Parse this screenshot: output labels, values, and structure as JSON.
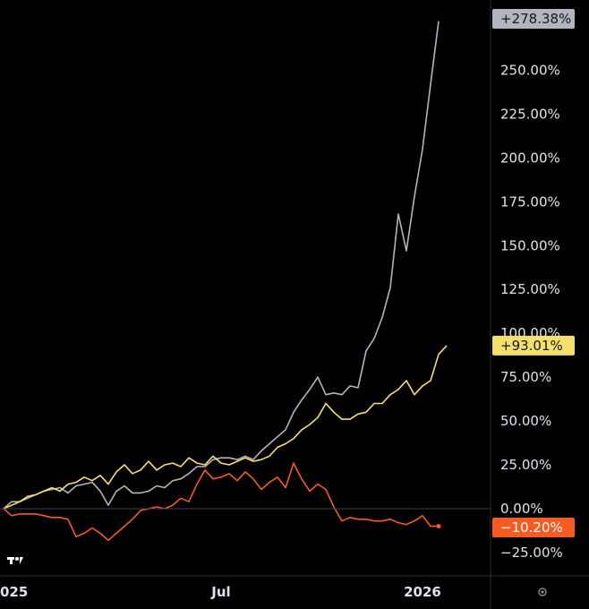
{
  "chart_data": {
    "type": "line",
    "y_unit": "%",
    "ylim": [
      -33,
      283
    ],
    "yticks": [
      "250.00%",
      "225.00%",
      "200.00%",
      "175.00%",
      "150.00%",
      "125.00%",
      "100.00%",
      "75.00%",
      "50.00%",
      "25.00%",
      "0.00%",
      "-25.00%"
    ],
    "ytick_values": [
      250,
      225,
      200,
      175,
      150,
      125,
      100,
      75,
      50,
      25,
      0,
      -25
    ],
    "xlim": [
      0,
      56
    ],
    "xticks": [
      {
        "label": "025",
        "x": 1
      },
      {
        "label": "Jul",
        "x": 27
      },
      {
        "label": "2026",
        "x": 52
      }
    ],
    "grid": false,
    "legend": "none",
    "zero_line": true,
    "series": [
      {
        "color": "#b2b5be",
        "last_value_label": "+278.38%",
        "values": [
          0,
          4,
          4,
          6,
          8,
          10,
          11,
          12,
          9,
          13,
          14,
          15,
          10,
          2,
          10,
          13,
          9,
          9,
          10,
          13,
          12,
          16,
          17,
          20,
          24,
          24,
          28,
          29,
          29,
          28,
          30,
          28,
          33,
          37,
          41,
          45,
          55,
          62,
          68,
          75,
          65,
          66,
          65,
          70,
          69,
          90,
          97,
          109,
          126,
          168,
          147,
          178,
          205,
          242,
          278
        ]
      },
      {
        "color": "#f5e06d",
        "last_value_label": "+93.01%",
        "values": [
          0,
          2,
          4,
          7,
          8,
          10,
          12,
          10,
          14,
          15,
          18,
          16,
          19,
          14,
          21,
          25,
          20,
          22,
          27,
          22,
          25,
          26,
          24,
          29,
          26,
          25,
          30,
          26,
          25,
          27,
          29,
          27,
          28,
          30,
          35,
          37,
          40,
          45,
          48,
          52,
          60,
          55,
          51,
          51,
          54,
          55,
          60,
          60,
          65,
          68,
          73,
          65,
          70,
          73,
          88,
          93
        ]
      },
      {
        "color": "#f45c24",
        "last_value_label": "-10.20%",
        "values": [
          0,
          -4,
          -3,
          -3,
          -3,
          -4,
          -5,
          -5,
          -6,
          -16,
          -14,
          -11,
          -14,
          -18,
          -14,
          -10,
          -6,
          -1,
          0,
          1,
          0,
          2,
          6,
          4,
          14,
          22,
          17,
          18,
          20,
          16,
          21,
          17,
          11,
          15,
          18,
          12,
          26,
          17,
          10,
          14,
          11,
          1,
          -7,
          -5,
          -6,
          -6,
          -7,
          -7,
          -6,
          -8,
          -9,
          -7,
          -4,
          -10,
          -10
        ]
      }
    ]
  },
  "icons": {
    "logo": "tradingview-logo-icon",
    "settings": "circle-dot-icon"
  }
}
